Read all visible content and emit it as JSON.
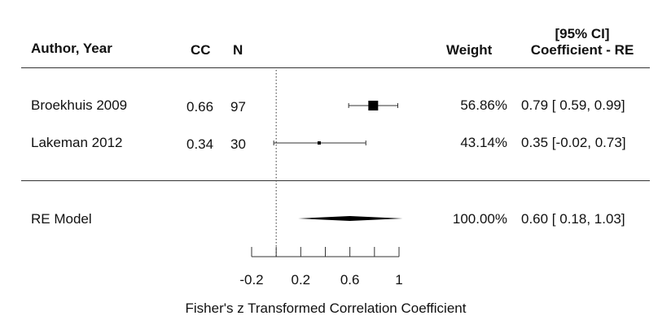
{
  "chart_data": {
    "type": "forest",
    "xlabel": "Fisher's z Transformed Correlation Coefficient",
    "xlim": [
      -0.2,
      1
    ],
    "xticks": [
      -0.2,
      0,
      0.2,
      0.4,
      0.6,
      0.8,
      1
    ],
    "xtick_labels": [
      "-0.2",
      "",
      "0.2",
      "",
      "0.6",
      "",
      "1"
    ],
    "reference_line": 0,
    "columns": {
      "author": "Author, Year",
      "cc": "CC",
      "n": "N",
      "weight": "Weight",
      "ci_title": "[95% CI]",
      "coef_title": "Coefficient - RE"
    },
    "studies": [
      {
        "author": "Broekhuis 2009",
        "cc": "0.66",
        "n": "97",
        "weight": "56.86%",
        "weight_value": 56.86,
        "estimate": 0.79,
        "ci_lower": 0.59,
        "ci_upper": 0.99,
        "coef_text": "0.79 [ 0.59, 0.99]"
      },
      {
        "author": "Lakeman 2012",
        "cc": "0.34",
        "n": "30",
        "weight": "43.14%",
        "weight_value": 43.14,
        "estimate": 0.35,
        "ci_lower": -0.02,
        "ci_upper": 0.73,
        "coef_text": "0.35 [-0.02, 0.73]"
      }
    ],
    "summary": {
      "label": "RE Model",
      "weight": "100.00%",
      "estimate": 0.6,
      "ci_lower": 0.18,
      "ci_upper": 1.03,
      "coef_text": "0.60 [ 0.18, 1.03]"
    }
  }
}
